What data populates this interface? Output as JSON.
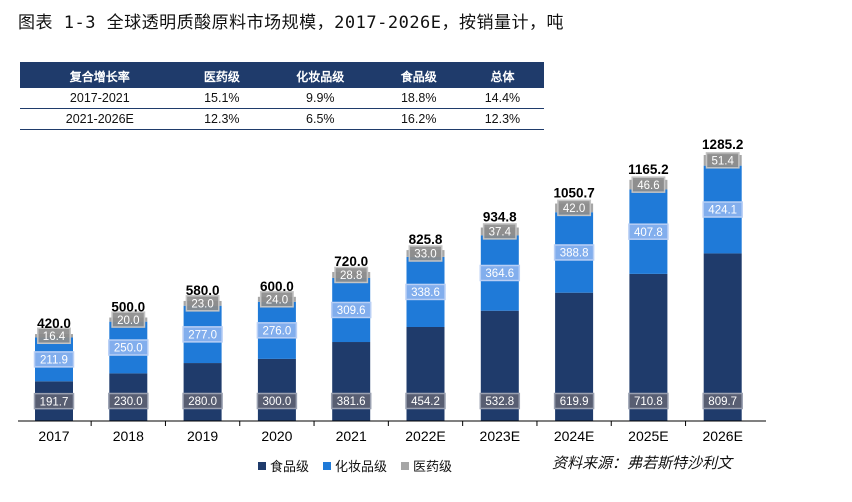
{
  "title": "图表 1-3 全球透明质酸原料市场规模，2017-2026E，按销量计，吨",
  "growth_table": {
    "headers": [
      "复合增长率",
      "医药级",
      "化妆品级",
      "食品级",
      "总体"
    ],
    "rows": [
      [
        "2017-2021",
        "15.1%",
        "9.9%",
        "18.8%",
        "14.4%"
      ],
      [
        "2021-2026E",
        "12.3%",
        "6.5%",
        "16.2%",
        "12.3%"
      ]
    ]
  },
  "source": "资料来源：弗若斯特沙利文",
  "colors": {
    "food": "#1f3b6b",
    "cosmetic": "#1f7ad8",
    "pharma": "#a6a6a6",
    "label_box_food": "#5d6273",
    "label_box_cosmetic": "#8bb2ef",
    "label_box_pharma": "#8c8c8c"
  },
  "chart_data": {
    "type": "bar",
    "stacked": true,
    "categories": [
      "2017",
      "2018",
      "2019",
      "2020",
      "2021",
      "2022E",
      "2023E",
      "2024E",
      "2025E",
      "2026E"
    ],
    "series": [
      {
        "name": "食品级",
        "values": [
          191.7,
          230.0,
          280.0,
          300.0,
          381.6,
          454.2,
          532.8,
          619.9,
          710.8,
          809.7
        ]
      },
      {
        "name": "化妆品级",
        "values": [
          211.9,
          250.0,
          277.0,
          276.0,
          309.6,
          338.6,
          364.6,
          388.8,
          407.8,
          424.1
        ]
      },
      {
        "name": "医药级",
        "values": [
          16.4,
          20.0,
          23.0,
          24.0,
          28.8,
          33.0,
          37.4,
          42.0,
          46.6,
          51.4
        ]
      }
    ],
    "totals": [
      "420.0",
      "500.0",
      "580.0",
      "600.0",
      "720.0",
      "825.8",
      "934.8",
      "1050.7",
      "1165.2",
      "1285.2"
    ],
    "value_labels": {
      "food": [
        "191.7",
        "230.0",
        "280.0",
        "300.0",
        "381.6",
        "454.2",
        "532.8",
        "619.9",
        "710.8",
        "809.7"
      ],
      "cosmetic": [
        "211.9",
        "250.0",
        "277.0",
        "276.0",
        "309.6",
        "338.6",
        "364.6",
        "388.8",
        "407.8",
        "424.1"
      ],
      "pharma": [
        "16.4",
        "20.0",
        "23.0",
        "24.0",
        "28.8",
        "33.0",
        "37.4",
        "42.0",
        "46.6",
        "51.4"
      ]
    },
    "legend": [
      "食品级",
      "化妆品级",
      "医药级"
    ],
    "legend_position": "bottom",
    "ylim": [
      0,
      1300
    ],
    "grid": false
  }
}
